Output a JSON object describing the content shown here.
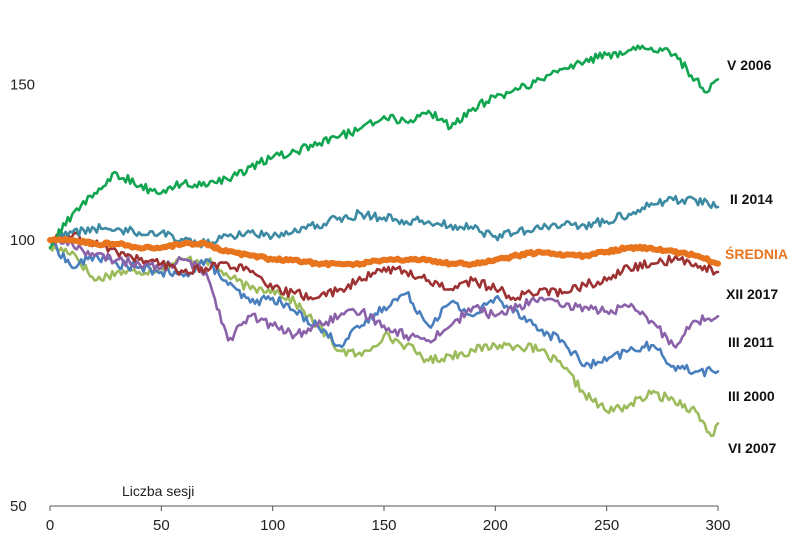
{
  "chart_data": {
    "type": "line",
    "title": "",
    "xlabel": "Liczba sesji",
    "ylabel": "",
    "xlim": [
      0,
      300
    ],
    "ylim": [
      50,
      170
    ],
    "y_scale": "log",
    "x_ticks": [
      "0",
      "50",
      "100",
      "150",
      "200",
      "250",
      "300"
    ],
    "y_ticks": [
      "50",
      "100",
      "150"
    ],
    "grid": false,
    "legend": "labels at line ends (right)",
    "series": [
      {
        "name": "V 2006",
        "color": "#12a54f",
        "x": [
          0,
          10,
          20,
          30,
          40,
          50,
          60,
          70,
          80,
          90,
          100,
          110,
          120,
          130,
          140,
          150,
          160,
          170,
          180,
          190,
          200,
          210,
          220,
          230,
          240,
          250,
          260,
          270,
          280,
          290,
          295,
          300
        ],
        "y": [
          98,
          107,
          113,
          119,
          115,
          113,
          116,
          115,
          117,
          121,
          124,
          126,
          128,
          131,
          134,
          138,
          136,
          140,
          134,
          141,
          145,
          148,
          152,
          156,
          159,
          162,
          164,
          165,
          162,
          152,
          147,
          152
        ]
      },
      {
        "name": "II 2014",
        "color": "#3c8aa3",
        "x": [
          0,
          10,
          20,
          30,
          40,
          50,
          60,
          70,
          80,
          90,
          100,
          110,
          120,
          130,
          140,
          150,
          160,
          170,
          180,
          190,
          200,
          210,
          220,
          230,
          240,
          250,
          260,
          270,
          280,
          290,
          300
        ],
        "y": [
          100,
          102,
          103,
          103,
          102,
          102,
          100,
          99,
          101,
          102,
          101,
          103,
          104,
          106,
          107,
          106,
          105,
          105,
          104,
          103,
          101,
          102,
          103,
          104,
          104,
          105,
          107,
          110,
          111,
          111,
          109
        ]
      },
      {
        "name": "ŚREDNIA",
        "color": "#e8741e",
        "x": [
          0,
          10,
          20,
          30,
          40,
          50,
          60,
          70,
          80,
          90,
          100,
          110,
          120,
          130,
          140,
          150,
          160,
          170,
          180,
          190,
          200,
          210,
          220,
          230,
          240,
          250,
          260,
          270,
          280,
          290,
          300
        ],
        "y": [
          100,
          100,
          99,
          99,
          98,
          98,
          99,
          99,
          97,
          96,
          95,
          95,
          94,
          94,
          94,
          95,
          95,
          95,
          94,
          94,
          95,
          96,
          97,
          96,
          96,
          97,
          98,
          98,
          97,
          96,
          94
        ]
      },
      {
        "name": "XII 2017",
        "color": "#9e3232",
        "x": [
          0,
          10,
          20,
          30,
          40,
          50,
          60,
          70,
          80,
          90,
          100,
          110,
          120,
          130,
          140,
          150,
          160,
          170,
          180,
          190,
          200,
          210,
          220,
          230,
          240,
          250,
          260,
          270,
          280,
          290,
          300
        ],
        "y": [
          100,
          101,
          99,
          97,
          95,
          94,
          92,
          93,
          94,
          92,
          88,
          87,
          86,
          88,
          90,
          93,
          92,
          90,
          88,
          90,
          88,
          86,
          88,
          87,
          89,
          90,
          93,
          94,
          95,
          94,
          92
        ]
      },
      {
        "name": "III 2011",
        "color": "#8b62aa",
        "x": [
          0,
          10,
          20,
          30,
          40,
          50,
          60,
          70,
          80,
          90,
          100,
          110,
          120,
          130,
          140,
          150,
          160,
          170,
          180,
          190,
          200,
          210,
          220,
          230,
          240,
          250,
          260,
          270,
          280,
          290,
          300
        ],
        "y": [
          100,
          99,
          96,
          95,
          94,
          93,
          95,
          92,
          77,
          82,
          80,
          78,
          80,
          82,
          83,
          80,
          78,
          77,
          80,
          84,
          82,
          84,
          86,
          84,
          84,
          83,
          84,
          81,
          76,
          81,
          82
        ]
      },
      {
        "name": "III 2000",
        "color": "#4a7fbe",
        "x": [
          0,
          10,
          20,
          30,
          40,
          50,
          60,
          70,
          80,
          90,
          100,
          110,
          120,
          130,
          140,
          150,
          160,
          170,
          180,
          190,
          200,
          210,
          220,
          230,
          240,
          250,
          260,
          270,
          280,
          290,
          300
        ],
        "y": [
          100,
          93,
          96,
          94,
          93,
          92,
          91,
          95,
          89,
          85,
          86,
          83,
          80,
          76,
          80,
          84,
          87,
          80,
          85,
          82,
          86,
          83,
          79,
          77,
          72,
          73,
          75,
          76,
          72,
          71,
          71
        ]
      },
      {
        "name": "VI 2007",
        "color": "#9cbb5a",
        "x": [
          0,
          10,
          20,
          30,
          40,
          50,
          60,
          70,
          80,
          90,
          100,
          110,
          120,
          130,
          140,
          150,
          160,
          170,
          180,
          190,
          200,
          210,
          220,
          230,
          240,
          250,
          260,
          270,
          280,
          290,
          297,
          300
        ],
        "y": [
          98,
          97,
          90,
          92,
          92,
          93,
          95,
          95,
          91,
          88,
          88,
          85,
          80,
          75,
          74,
          78,
          76,
          73,
          74,
          75,
          76,
          76,
          75,
          72,
          67,
          64,
          65,
          67,
          66,
          64,
          60,
          62
        ]
      }
    ]
  }
}
